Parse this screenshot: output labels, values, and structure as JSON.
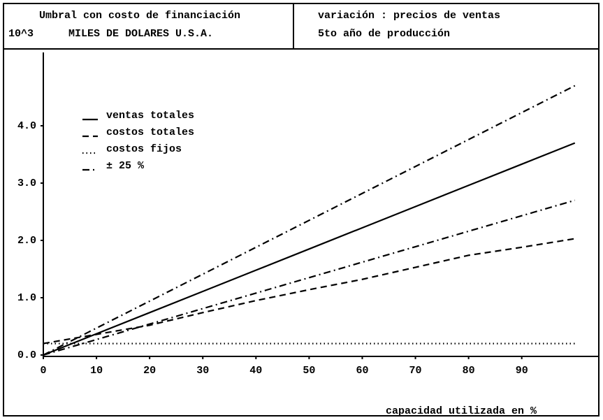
{
  "chart_data": {
    "type": "line",
    "title": "Umbral con costo de financiación",
    "y_unit": "10^3",
    "ylabel": "MILES DE DOLARES U.S.A.",
    "annotations": [
      "variación : precios de ventas",
      "5to año de producción"
    ],
    "xlabel": "capacidad utilizada en %",
    "x": [
      0,
      10,
      20,
      30,
      40,
      50,
      60,
      70,
      80,
      90,
      100
    ],
    "series": [
      {
        "name": "ventas totales",
        "color": "#000000",
        "dash": "solid",
        "values": [
          0,
          0.37,
          0.74,
          1.11,
          1.48,
          1.85,
          2.22,
          2.59,
          2.96,
          3.33,
          3.7
        ]
      },
      {
        "name": "costos totales",
        "color": "#000000",
        "dash": "dashed",
        "values": [
          0.2,
          0.36,
          0.52,
          0.74,
          0.95,
          1.14,
          1.32,
          1.53,
          1.74,
          1.88,
          2.03
        ]
      },
      {
        "name": "costos fijos",
        "color": "#000000",
        "dash": "dotted",
        "values": [
          0.2,
          0.2,
          0.2,
          0.2,
          0.2,
          0.2,
          0.2,
          0.2,
          0.2,
          0.2,
          0.2
        ]
      },
      {
        "name": "± 25 %",
        "color": "#000000",
        "dash": "dashdot",
        "values": [
          0,
          0.47,
          0.94,
          1.41,
          1.88,
          2.35,
          2.82,
          3.29,
          3.76,
          4.23,
          4.7
        ]
      },
      {
        "color": "#000000",
        "dash": "dashdot",
        "values": [
          0,
          0.27,
          0.54,
          0.81,
          1.08,
          1.35,
          1.62,
          1.89,
          2.16,
          2.43,
          2.7
        ]
      }
    ],
    "xlim": [
      0,
      102
    ],
    "ylim": [
      0,
      5
    ],
    "xticks": [
      0,
      10,
      20,
      30,
      40,
      50,
      60,
      70,
      80,
      90
    ],
    "yticks": [
      {
        "value": 0,
        "label": "0.0"
      },
      {
        "value": 1,
        "label": "1.0"
      },
      {
        "value": 2,
        "label": "2.0"
      },
      {
        "value": 3,
        "label": "3.0"
      },
      {
        "value": 4,
        "label": "4.0"
      }
    ],
    "legend": "upper left"
  }
}
